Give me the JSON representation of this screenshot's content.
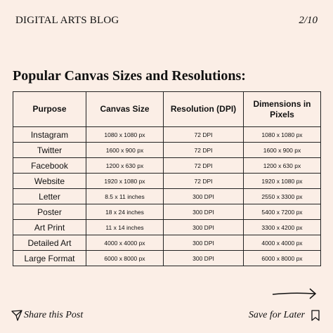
{
  "header": {
    "blog": "DIGITAL ARTS BLOG",
    "page": "2/10"
  },
  "title": "Popular Canvas Sizes and Resolutions:",
  "table": {
    "columns": [
      "Purpose",
      "Canvas Size",
      "Resolution (DPI)",
      "Dimensions in Pixels"
    ],
    "rows": [
      [
        "Instagram",
        "1080 x 1080 px",
        "72 DPI",
        "1080 x 1080 px"
      ],
      [
        "Twitter",
        "1600 x 900 px",
        "72 DPI",
        "1600 x 900 px"
      ],
      [
        "Facebook",
        "1200 x 630 px",
        "72 DPI",
        "1200 x 630 px"
      ],
      [
        "Website",
        "1920 x 1080 px",
        "72 DPI",
        "1920 x 1080 px"
      ],
      [
        "Letter",
        "8.5 x 11 inches",
        "300 DPI",
        "2550 x 3300 px"
      ],
      [
        "Poster",
        "18 x 24 inches",
        "300 DPI",
        "5400 x 7200 px"
      ],
      [
        "Art Print",
        "11 x 14 inches",
        "300 DPI",
        "3300 x 4200 px"
      ],
      [
        "Detailed Art",
        "4000 x 4000 px",
        "300 DPI",
        "4000 x 4000 px"
      ],
      [
        "Large Format",
        "6000 x 8000 px",
        "300 DPI",
        "6000 x 8000 px"
      ]
    ]
  },
  "footer": {
    "share": "Share this Post",
    "save": "Save for Later"
  }
}
